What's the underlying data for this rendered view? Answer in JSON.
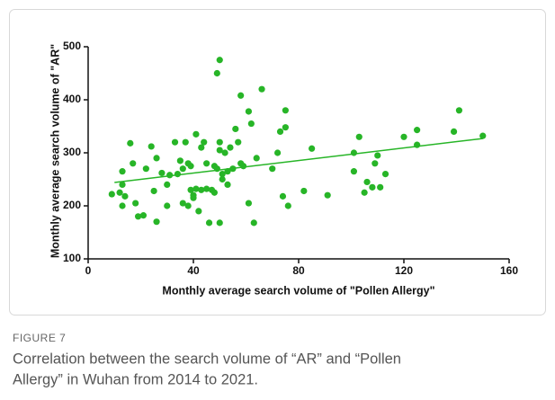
{
  "chart_data": {
    "type": "scatter",
    "xlabel": "Monthly average search volume of \"Pollen Allergy\"",
    "ylabel": "Monthly average search volume of \"AR\"",
    "xlim": [
      0,
      160
    ],
    "xticks": [
      0,
      40,
      80,
      120,
      160
    ],
    "ylim": [
      100,
      500
    ],
    "yticks": [
      100,
      200,
      300,
      400,
      500
    ],
    "series": [
      {
        "color": "#27b527",
        "x": [
          9,
          12,
          13,
          13,
          13,
          14,
          16,
          17,
          18,
          19,
          21,
          22,
          24,
          25,
          26,
          26,
          28,
          30,
          30,
          31,
          33,
          34,
          35,
          36,
          36,
          37,
          38,
          38,
          39,
          39,
          40,
          40,
          41,
          41,
          42,
          43,
          43,
          44,
          45,
          45,
          46,
          47,
          48,
          48,
          49,
          49,
          50,
          50,
          50,
          50,
          51,
          51,
          52,
          53,
          53,
          54,
          55,
          56,
          57,
          58,
          58,
          59,
          61,
          61,
          62,
          63,
          64,
          66,
          70,
          72,
          73,
          74,
          75,
          75,
          76,
          82,
          85,
          91,
          101,
          101,
          103,
          105,
          106,
          108,
          109,
          110,
          111,
          113,
          120,
          125,
          125,
          139,
          141,
          150
        ],
        "y": [
          222,
          225,
          265,
          240,
          200,
          218,
          318,
          280,
          205,
          180,
          182,
          270,
          312,
          228,
          170,
          290,
          262,
          240,
          200,
          258,
          320,
          260,
          285,
          205,
          270,
          320,
          280,
          200,
          230,
          275,
          220,
          215,
          335,
          232,
          190,
          310,
          230,
          320,
          280,
          232,
          168,
          230,
          225,
          275,
          450,
          270,
          475,
          320,
          305,
          168,
          260,
          250,
          300,
          265,
          240,
          310,
          270,
          345,
          320,
          408,
          280,
          275,
          378,
          205,
          355,
          168,
          290,
          420,
          270,
          300,
          340,
          218,
          380,
          348,
          200,
          228,
          308,
          220,
          265,
          300,
          330,
          225,
          245,
          235,
          280,
          295,
          235,
          260,
          330,
          343,
          315,
          340,
          380,
          332
        ]
      }
    ],
    "trendline": {
      "color": "#27b527",
      "x": [
        10,
        150
      ],
      "y": [
        244,
        327
      ]
    }
  },
  "figure": {
    "label": "FIGURE 7",
    "caption": [
      "Correlation between the search volume of “AR” and “Pollen",
      "Allergy” in Wuhan from 2014 to 2021."
    ]
  }
}
